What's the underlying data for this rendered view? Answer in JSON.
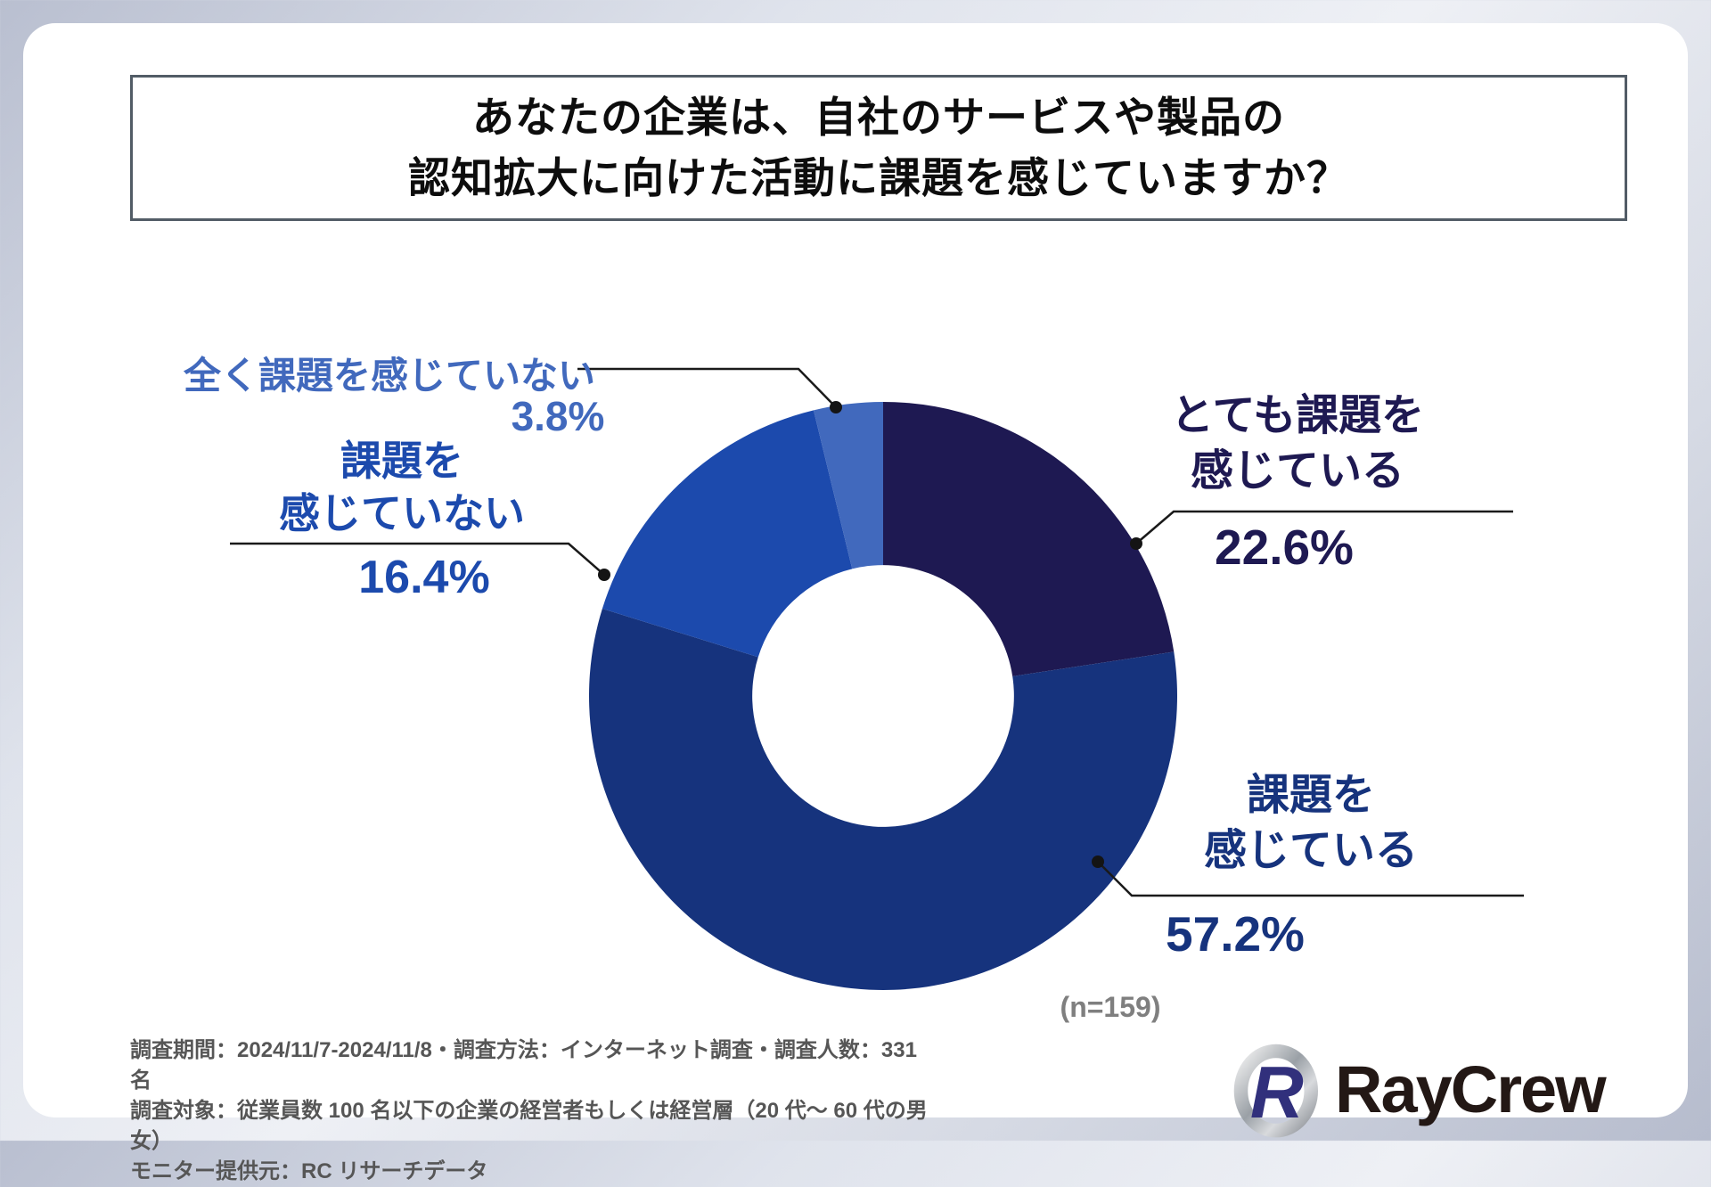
{
  "title": {
    "line1": "あなたの企業は、自社のサービスや製品の",
    "line2": "認知拡大に向けた活動に課題を感じていますか？"
  },
  "chart_data": {
    "type": "pie",
    "subtype": "donut",
    "title": "あなたの企業は、自社のサービスや製品の認知拡大に向けた活動に課題を感じていますか？",
    "sample_label": "(n=159)",
    "sample_n": 159,
    "donut_hole_ratio": 0.445,
    "start_angle_deg": 0,
    "direction": "clockwise",
    "segments": [
      {
        "label": "とても課題を感じている",
        "label_line1": "とても課題を",
        "label_line2": "感じている",
        "value": 22.6,
        "pct_text": "22.6%",
        "color": "#1e1952"
      },
      {
        "label": "課題を感じている",
        "label_line1": "課題を",
        "label_line2": "感じている",
        "value": 57.2,
        "pct_text": "57.2%",
        "color": "#16337d"
      },
      {
        "label": "課題を感じていない",
        "label_line1": "課題を",
        "label_line2": "感じていない",
        "value": 16.4,
        "pct_text": "16.4%",
        "color": "#1c4aad"
      },
      {
        "label": "全く課題を感じていない",
        "label_line1": "全く課題を感じていない",
        "label_line2": "",
        "value": 3.8,
        "pct_text": "3.8%",
        "color": "#4169bd"
      }
    ]
  },
  "footnote": {
    "line1": "調査期間：2024/11/7-2024/11/8・調査方法：インターネット調査・調査人数：331 名",
    "line2": "調査対象：従業員数 100 名以下の企業の経営者もしくは経営層（20 代～ 60 代の男女）",
    "line3": "モニター提供元：RC リサーチデータ"
  },
  "logo": {
    "wordmark": "RayCrew"
  },
  "colors": {
    "background": "#c9cedb",
    "card": "#ffffff",
    "title_border": "#525c66",
    "title_text": "#0d0d0d",
    "leader_line": "#1a1a1a",
    "sample_text": "#7f7f7f",
    "footnote_text": "#565656",
    "logo_text": "#231815",
    "logo_emblem_navy": "#31307c"
  }
}
